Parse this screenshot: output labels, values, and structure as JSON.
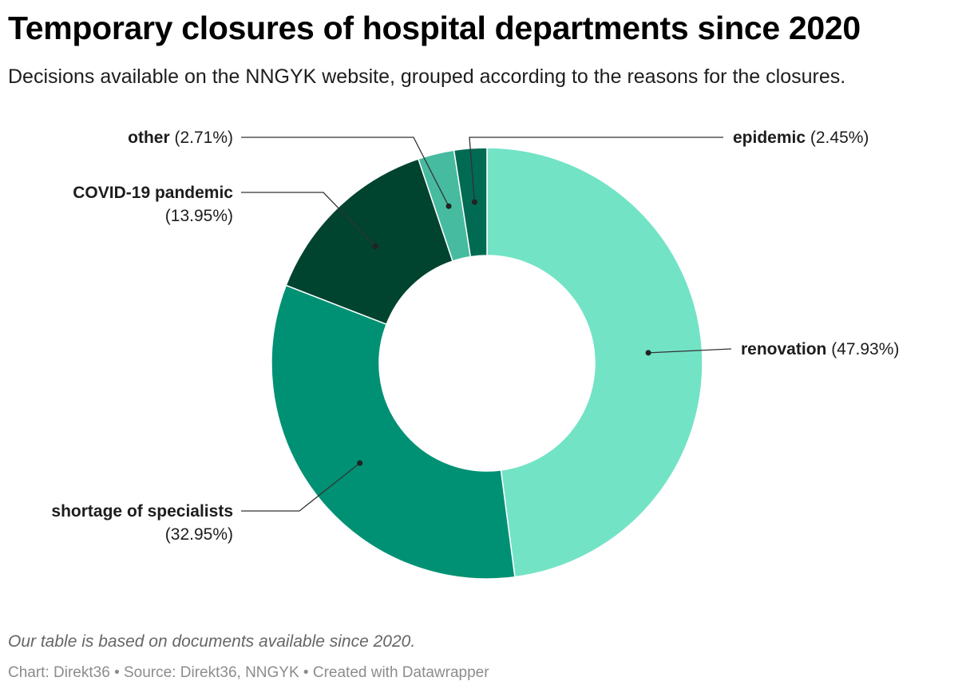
{
  "header": {
    "title": "Temporary closures of hospital departments since 2020",
    "subtitle": "Decisions available on the NNGYK website, grouped according to the reasons for the closures."
  },
  "footer": {
    "notes": "Our table is based on documents available since 2020.",
    "chart_label": "Chart:",
    "chart_by": "Direkt36",
    "source_label": "Source:",
    "source": "Direkt36, NNGYK",
    "created_with": "Created with Datawrapper",
    "separator": "•"
  },
  "chart_data": {
    "type": "pie",
    "style": "donut",
    "title": "Temporary closures of hospital departments since 2020",
    "slices": [
      {
        "name": "renovation",
        "value": 47.93,
        "value_label": "(47.93%)",
        "color": "#73e3c6"
      },
      {
        "name": "shortage of specialists",
        "value": 32.95,
        "value_label": "(32.95%)",
        "color": "#009174"
      },
      {
        "name": "COVID-19 pandemic",
        "value": 13.95,
        "value_label": "(13.95%)",
        "color": "#00432f"
      },
      {
        "name": "other",
        "value": 2.71,
        "value_label": "(2.71%)",
        "color": "#47bb9f"
      },
      {
        "name": "epidemic",
        "value": 2.45,
        "value_label": "(2.45%)",
        "color": "#006a52"
      }
    ]
  }
}
